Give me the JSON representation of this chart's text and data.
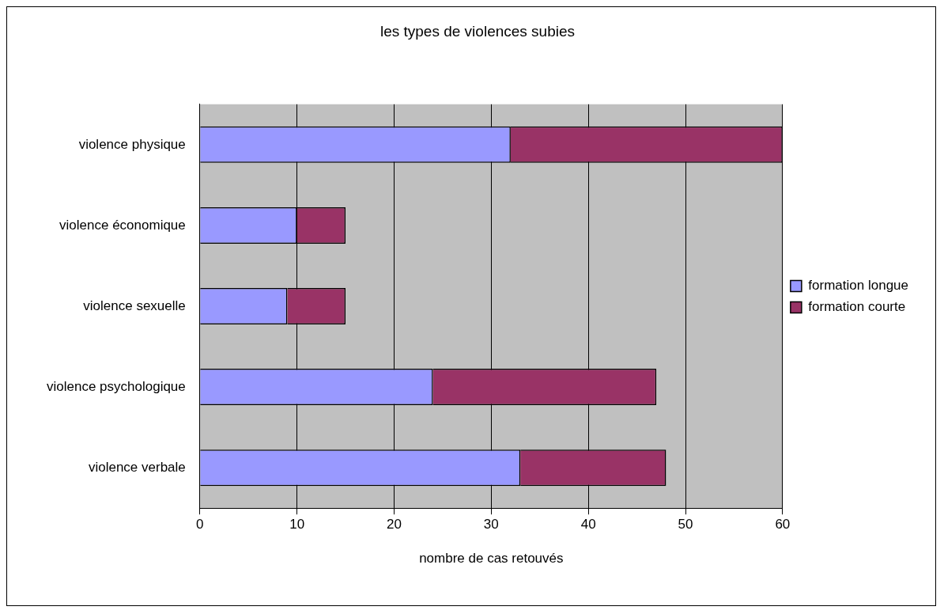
{
  "chart_data": {
    "type": "bar",
    "orientation": "horizontal",
    "stacked": true,
    "title": "les types de violences subies",
    "xlabel": "nombre de cas retouvés",
    "categories": [
      "violence physique",
      "violence économique",
      "violence sexuelle",
      "violence psychologique",
      "violence verbale"
    ],
    "series": [
      {
        "name": "formation longue",
        "color": "#9999ff",
        "values": [
          32,
          10,
          9,
          24,
          33
        ]
      },
      {
        "name": "formation courte",
        "color": "#993366",
        "values": [
          28,
          5,
          6,
          23,
          15
        ]
      }
    ],
    "xlim": [
      0,
      60
    ],
    "xticks": [
      0,
      10,
      20,
      30,
      40,
      50,
      60
    ],
    "grid": "x",
    "legend": "right"
  }
}
